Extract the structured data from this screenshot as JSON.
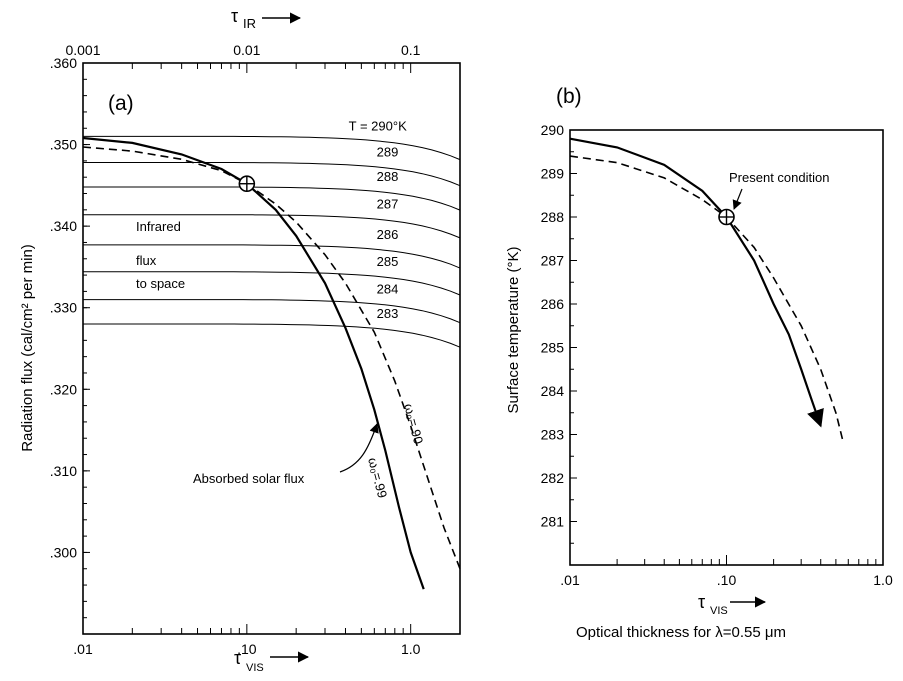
{
  "chart_data": [
    {
      "panel_label": "(a)",
      "type": "line",
      "x_scale": "log",
      "xlim": [
        0.01,
        2.0
      ],
      "ylim": [
        0.29,
        0.36
      ],
      "ylabel": "Radiation flux (cal/cm² per min)",
      "xlabel": "τVIS",
      "xlabel_sub": "VIS",
      "top_axis_label": "τIR",
      "top_axis_sub": "IR",
      "x_ticks": [
        ".01",
        ".10",
        "1.0"
      ],
      "top_ticks": [
        "0.001",
        "0.01",
        "0.1"
      ],
      "y_ticks": [
        ".360",
        ".350",
        ".340",
        ".330",
        ".320",
        ".310",
        ".300"
      ],
      "isotherm_prefix": "T =",
      "isotherm_unit": "°K",
      "isotherms": [
        {
          "label": "290",
          "value": 0.351
        },
        {
          "label": "289",
          "value": 0.3478
        },
        {
          "label": "288",
          "value": 0.3448
        },
        {
          "label": "287",
          "value": 0.3414
        },
        {
          "label": "286",
          "value": 0.3377
        },
        {
          "label": "285",
          "value": 0.3344
        },
        {
          "label": "284",
          "value": 0.331
        },
        {
          "label": "283",
          "value": 0.328
        }
      ],
      "infrared_text": [
        "Infrared",
        "flux",
        "to space"
      ],
      "series": [
        {
          "name": "ω₀=.99",
          "style": "solid",
          "x": [
            0.01,
            0.02,
            0.04,
            0.07,
            0.1,
            0.15,
            0.2,
            0.3,
            0.4,
            0.5,
            0.6,
            0.7,
            0.85,
            1.0,
            1.2
          ],
          "y": [
            0.3508,
            0.3502,
            0.3488,
            0.347,
            0.3452,
            0.342,
            0.3388,
            0.333,
            0.3275,
            0.3225,
            0.3175,
            0.3125,
            0.3055,
            0.3,
            0.2955
          ]
        },
        {
          "name": "ω₀=.90",
          "style": "dashed",
          "x": [
            0.01,
            0.02,
            0.04,
            0.07,
            0.1,
            0.15,
            0.2,
            0.3,
            0.4,
            0.6,
            0.8,
            1.0,
            1.3,
            1.6,
            2.0
          ],
          "y": [
            0.3497,
            0.3492,
            0.3482,
            0.3468,
            0.3452,
            0.3427,
            0.3405,
            0.3365,
            0.333,
            0.327,
            0.321,
            0.3155,
            0.3085,
            0.303,
            0.298
          ]
        }
      ],
      "annotation": "Absorbed solar flux",
      "present_condition": {
        "x": 0.1,
        "y": 0.3452
      }
    },
    {
      "panel_label": "(b)",
      "type": "line",
      "x_scale": "log",
      "xlim": [
        0.01,
        1.0
      ],
      "ylim": [
        280,
        290
      ],
      "ylabel": "Surface temperature (°K)",
      "xlabel": "τVIS",
      "xlabel_sub": "VIS",
      "caption": "Optical thickness for λ=0.55 μm",
      "x_ticks": [
        ".01",
        ".10",
        "1.0"
      ],
      "y_ticks": [
        "290",
        "289",
        "288",
        "287",
        "286",
        "285",
        "284",
        "283",
        "282",
        "281"
      ],
      "series": [
        {
          "name": "ω₀=.99",
          "style": "solid",
          "x": [
            0.01,
            0.02,
            0.04,
            0.07,
            0.1,
            0.15,
            0.2,
            0.25,
            0.3,
            0.35,
            0.4
          ],
          "y": [
            289.8,
            289.6,
            289.2,
            288.6,
            288.0,
            287.0,
            286.0,
            285.3,
            284.5,
            283.8,
            283.2
          ]
        },
        {
          "name": "ω₀=.90",
          "style": "dashed",
          "x": [
            0.01,
            0.02,
            0.04,
            0.07,
            0.1,
            0.15,
            0.2,
            0.3,
            0.4,
            0.5,
            0.55
          ],
          "y": [
            289.4,
            289.25,
            288.9,
            288.4,
            288.0,
            287.3,
            286.6,
            285.5,
            284.5,
            283.5,
            282.9
          ]
        }
      ],
      "annotation": "Present condition",
      "present_condition": {
        "x": 0.1,
        "y": 288.0
      }
    }
  ]
}
